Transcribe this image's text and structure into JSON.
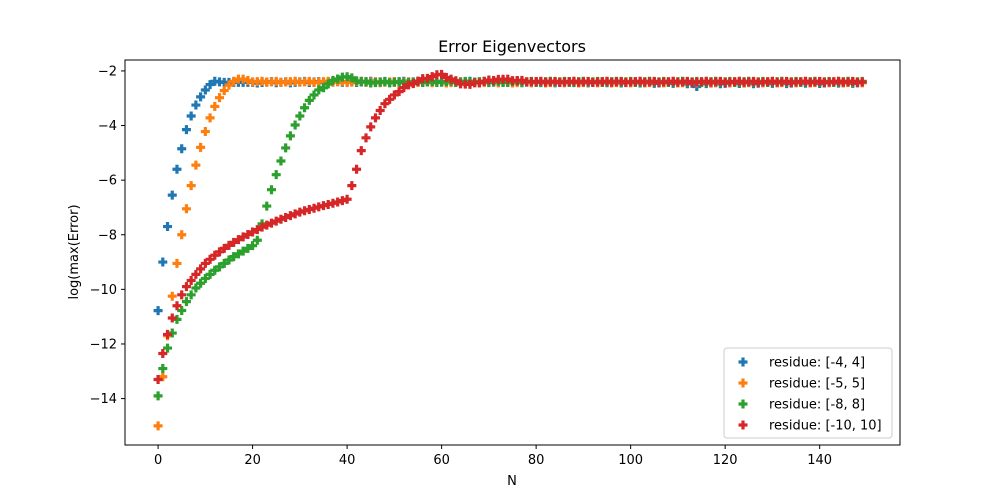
{
  "chart_data": {
    "type": "scatter",
    "title": "Error Eigenvectors",
    "xlabel": "N",
    "ylabel": "log(max(Error)",
    "xlim": [
      -7,
      157
    ],
    "ylim": [
      -15.7,
      -1.6
    ],
    "xticks": [
      0,
      20,
      40,
      60,
      80,
      100,
      120,
      140
    ],
    "yticks": [
      -14,
      -12,
      -10,
      -8,
      -6,
      -4,
      -2
    ],
    "xtick_labels": [
      "0",
      "20",
      "40",
      "60",
      "80",
      "100",
      "120",
      "140"
    ],
    "ytick_labels": [
      "−14",
      "−12",
      "−10",
      "−8",
      "−6",
      "−4",
      "−2"
    ],
    "marker": "plus (filled)",
    "n_points": 150,
    "grid": false,
    "legend_position": "lower-right",
    "series": [
      {
        "name": "residue: [-4, 4]",
        "color": "#1f77b4",
        "keypoints_x": [
          0,
          1,
          2,
          3,
          4,
          5,
          6,
          7,
          8,
          9,
          10,
          11,
          12,
          13,
          14,
          20,
          40,
          60,
          100,
          113,
          114,
          115,
          149
        ],
        "keypoints_y": [
          -10.78,
          -9.0,
          -7.7,
          -6.55,
          -5.6,
          -4.85,
          -4.15,
          -3.65,
          -3.25,
          -2.95,
          -2.7,
          -2.5,
          -2.38,
          -2.4,
          -2.42,
          -2.42,
          -2.4,
          -2.4,
          -2.42,
          -2.45,
          -2.58,
          -2.45,
          -2.43
        ]
      },
      {
        "name": "residue: [-5, 5]",
        "color": "#ff7f0e",
        "keypoints_x": [
          0,
          1,
          2,
          3,
          4,
          5,
          6,
          7,
          8,
          9,
          10,
          11,
          12,
          13,
          14,
          15,
          16,
          17,
          18,
          20,
          40,
          60,
          149
        ],
        "keypoints_y": [
          -15.0,
          -13.2,
          -11.7,
          -10.25,
          -9.05,
          -8.0,
          -7.05,
          -6.2,
          -5.45,
          -4.8,
          -4.22,
          -3.72,
          -3.3,
          -2.98,
          -2.72,
          -2.52,
          -2.38,
          -2.3,
          -2.3,
          -2.4,
          -2.4,
          -2.42,
          -2.42
        ]
      },
      {
        "name": "residue: [-8, 8]",
        "color": "#2ca02c",
        "keypoints_x": [
          0,
          1,
          2,
          3,
          4,
          6,
          8,
          10,
          12,
          14,
          16,
          18,
          20,
          21,
          22,
          23,
          24,
          25,
          26,
          27,
          28,
          29,
          30,
          31,
          32,
          33,
          34,
          35,
          36,
          37,
          38,
          39,
          40,
          41,
          42,
          44,
          50,
          60,
          149
        ],
        "keypoints_y": [
          -13.9,
          -12.9,
          -12.15,
          -11.6,
          -11.1,
          -10.45,
          -9.95,
          -9.6,
          -9.3,
          -9.05,
          -8.8,
          -8.6,
          -8.4,
          -8.2,
          -7.6,
          -6.95,
          -6.35,
          -5.8,
          -5.3,
          -4.82,
          -4.38,
          -3.98,
          -3.65,
          -3.35,
          -3.08,
          -2.88,
          -2.72,
          -2.6,
          -2.48,
          -2.36,
          -2.27,
          -2.22,
          -2.22,
          -2.28,
          -2.35,
          -2.42,
          -2.42,
          -2.4,
          -2.4
        ]
      },
      {
        "name": "residue: [-10, 10]",
        "color": "#d62728",
        "keypoints_x": [
          0,
          1,
          2,
          3,
          4,
          5,
          6,
          8,
          10,
          12,
          14,
          16,
          18,
          20,
          22,
          25,
          28,
          30,
          34,
          38,
          40,
          41,
          42,
          43,
          44,
          45,
          46,
          47,
          48,
          50,
          52,
          54,
          56,
          58,
          59,
          60,
          62,
          64,
          66,
          68,
          70,
          72,
          80,
          149
        ],
        "keypoints_y": [
          -13.3,
          -12.35,
          -11.65,
          -11.05,
          -10.6,
          -10.2,
          -9.9,
          -9.45,
          -9.05,
          -8.75,
          -8.5,
          -8.28,
          -8.08,
          -7.9,
          -7.72,
          -7.5,
          -7.3,
          -7.17,
          -6.98,
          -6.8,
          -6.7,
          -6.2,
          -5.6,
          -4.92,
          -4.45,
          -4.05,
          -3.72,
          -3.45,
          -3.2,
          -2.88,
          -2.62,
          -2.45,
          -2.3,
          -2.2,
          -2.15,
          -2.15,
          -2.3,
          -2.45,
          -2.5,
          -2.42,
          -2.35,
          -2.3,
          -2.4,
          -2.4
        ]
      }
    ]
  }
}
